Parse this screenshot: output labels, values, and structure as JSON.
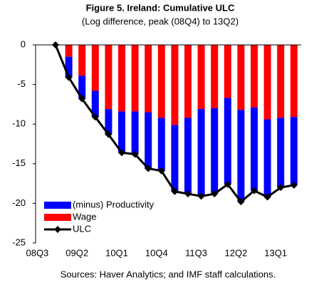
{
  "chart_data": {
    "type": "stacked-bar-line",
    "title": "Figure 5. Ireland: Cumulative ULC",
    "subtitle": "(Log difference, peak (08Q4) to 13Q2)",
    "source": "Sources: Haver Analytics; and IMF staff calculations.",
    "categories": [
      "08Q3",
      null,
      null,
      "09Q2",
      null,
      null,
      "10Q1",
      null,
      null,
      "10Q4",
      null,
      null,
      "11Q3",
      null,
      null,
      "12Q2",
      null,
      null,
      "13Q1",
      null
    ],
    "series": [
      {
        "name": "(minus) Productivity",
        "color": "#0000ff",
        "kind": "bar",
        "values": [
          null,
          null,
          -2.6,
          -2.9,
          -3.3,
          -3.2,
          -5.2,
          -5.4,
          -7.1,
          -6.7,
          -8.4,
          -9.6,
          -11.0,
          -10.8,
          -10.9,
          -11.6,
          -10.5,
          -9.8,
          -8.8,
          -8.6
        ]
      },
      {
        "name": "Wage",
        "color": "#ff0000",
        "kind": "bar",
        "values": [
          null,
          null,
          -1.5,
          -3.9,
          -5.8,
          -8.1,
          -8.4,
          -8.4,
          -8.5,
          -9.2,
          -10.1,
          -9.2,
          -8.1,
          -8.0,
          -6.7,
          -8.2,
          -7.9,
          -9.4,
          -9.2,
          -9.1
        ]
      },
      {
        "name": "ULC",
        "color": "#000000",
        "kind": "line",
        "values": [
          null,
          0,
          -4.1,
          -6.8,
          -9.1,
          -11.3,
          -13.6,
          -13.8,
          -15.6,
          -15.9,
          -18.5,
          -18.8,
          -19.1,
          -18.8,
          -17.6,
          -19.8,
          -18.4,
          -19.2,
          -18.0,
          -17.7
        ]
      }
    ],
    "ylim": [
      -25,
      0
    ],
    "yticks": [
      0,
      -5,
      -10,
      -15,
      -20,
      -25
    ],
    "grid": false
  }
}
